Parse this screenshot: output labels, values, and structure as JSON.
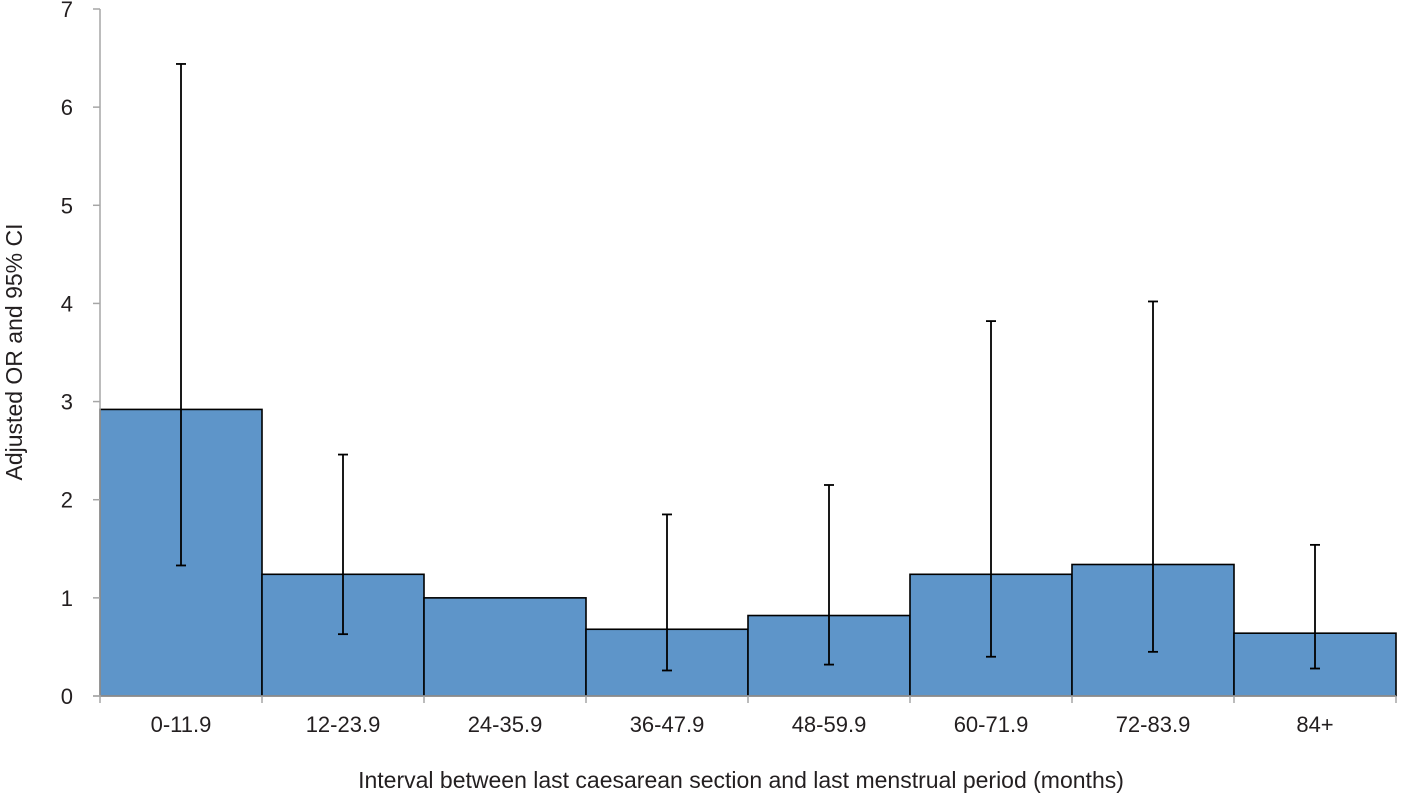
{
  "chart_data": {
    "type": "bar",
    "xlabel": "Interval between last caesarean section and last menstrual period (months)",
    "ylabel": "Adjusted OR and 95% CI",
    "ylim": [
      0,
      7
    ],
    "yticks": [
      0,
      1,
      2,
      3,
      4,
      5,
      6,
      7
    ],
    "grid": false,
    "legend": "none",
    "categories": [
      "0-11.9",
      "12-23.9",
      "24-35.9",
      "36-47.9",
      "48-59.9",
      "60-71.9",
      "72-83.9",
      "84+"
    ],
    "series": [
      {
        "values": [
          2.92,
          1.24,
          1.0,
          0.68,
          0.82,
          1.24,
          1.34,
          0.64
        ],
        "ci_lower": [
          1.33,
          0.63,
          null,
          0.26,
          0.32,
          0.4,
          0.45,
          0.28
        ],
        "ci_upper": [
          6.44,
          2.46,
          null,
          1.85,
          2.15,
          3.82,
          4.02,
          1.54
        ],
        "color": "#5e95c9"
      }
    ]
  }
}
